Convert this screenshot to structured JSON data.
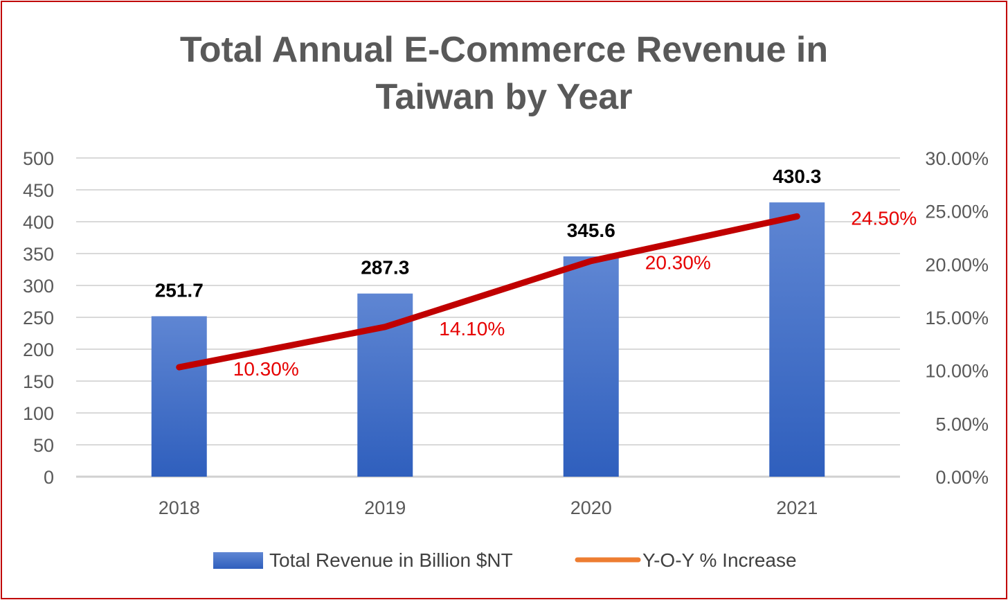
{
  "chart_data": {
    "type": "bar",
    "title_line1": "Total Annual  E-Commerce Revenue in",
    "title_line2": "Taiwan by Year",
    "categories": [
      "2018",
      "2019",
      "2020",
      "2021"
    ],
    "series": [
      {
        "name": "Total Revenue in Billion $NT",
        "kind": "bar",
        "axis": "left",
        "values": [
          251.7,
          287.3,
          345.6,
          430.3
        ],
        "labels": [
          "251.7",
          "287.3",
          "345.6",
          "430.3"
        ],
        "color": "#4472c4"
      },
      {
        "name": "Y-O-Y % Increase",
        "kind": "line",
        "axis": "right",
        "values": [
          10.3,
          14.1,
          20.3,
          24.5
        ],
        "labels": [
          "10.30%",
          "14.10%",
          "20.30%",
          "24.50%"
        ],
        "color": "#c00000",
        "legend_color": "#ed7d31",
        "label_color": "#e60000"
      }
    ],
    "y_left": {
      "min": 0,
      "max": 500,
      "ticks": [
        0,
        50,
        100,
        150,
        200,
        250,
        300,
        350,
        400,
        450,
        500
      ],
      "tick_labels": [
        "0",
        "50",
        "100",
        "150",
        "200",
        "250",
        "300",
        "350",
        "400",
        "450",
        "500"
      ]
    },
    "y_right": {
      "min": 0,
      "max": 30,
      "ticks": [
        0,
        5,
        10,
        15,
        20,
        25,
        30
      ],
      "tick_labels": [
        "0.00%",
        "5.00%",
        "10.00%",
        "15.00%",
        "20.00%",
        "25.00%",
        "30.00%"
      ]
    },
    "grid": true,
    "legend_position": "bottom",
    "xlabel": "",
    "ylabel": ""
  }
}
